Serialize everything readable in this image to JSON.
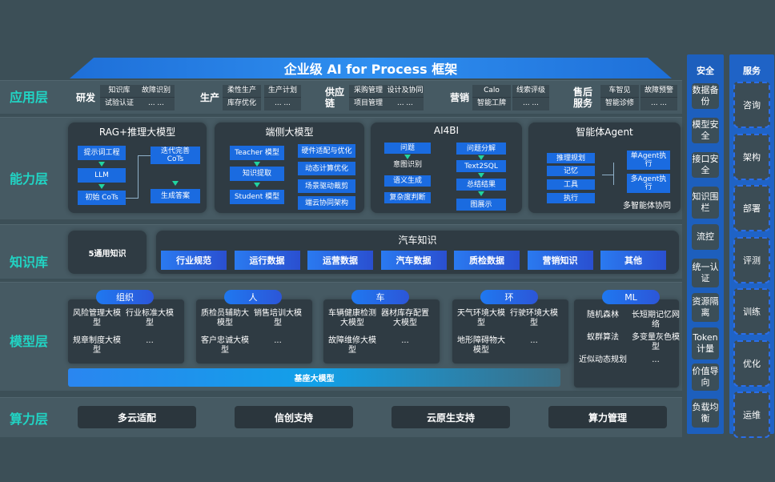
{
  "title": "企业级 AI for Process 框架",
  "layers": {
    "app": "应用层",
    "capability": "能力层",
    "knowledge": "知识库",
    "model": "模型层",
    "compute": "算力层"
  },
  "app_layer": [
    {
      "category": "研发",
      "items": [
        [
          "知识库",
          "试验认证"
        ],
        [
          "故障识别",
          "... ..."
        ]
      ]
    },
    {
      "category": "生产",
      "items": [
        [
          "柔性生产",
          "库存优化"
        ],
        [
          "生产计划",
          "... ..."
        ]
      ]
    },
    {
      "category": "供应链",
      "items": [
        [
          "采购管理",
          "项目管理"
        ],
        [
          "设计及协同",
          "... ..."
        ]
      ]
    },
    {
      "category": "营销",
      "items": [
        [
          "Calo",
          "智能工牌"
        ],
        [
          "线索评级",
          "... ..."
        ]
      ]
    },
    {
      "category": "售后服务",
      "items": [
        [
          "车智见",
          "智能诊修"
        ],
        [
          "故障预警",
          "... ..."
        ]
      ]
    }
  ],
  "capability": {
    "rag": {
      "title": "RAG+推理大模型",
      "steps": [
        "提示词工程",
        "LLM",
        "初始 CoTs"
      ],
      "refine": "迭代完善 CoTs",
      "answer": "生成答案"
    },
    "edge": {
      "title": "端侧大模型",
      "steps": [
        "Teacher 模型",
        "知识提取",
        "Student 模型"
      ],
      "features": [
        "硬件适配与优化",
        "动态计算优化",
        "场景驱动裁剪",
        "端云协同架构"
      ]
    },
    "ai4bi": {
      "title": "AI4BI",
      "left": [
        "问题",
        "意图识别",
        "语义生成",
        "复杂度判断"
      ],
      "right": [
        "问题分解",
        "Text2SQL",
        "总结结果",
        "图展示"
      ]
    },
    "agent": {
      "title": "智能体Agent",
      "modules": [
        "推理规划",
        "记忆",
        "工具",
        "执行"
      ],
      "exec": [
        "单Agent执行",
        "多Agent执行"
      ],
      "footer": "多智能体协同"
    }
  },
  "knowledge": {
    "general": "5通用知识",
    "auto_title": "汽车知识",
    "items": [
      "行业规范",
      "运行数据",
      "运营数据",
      "汽车数据",
      "质检数据",
      "营销知识",
      "其他"
    ]
  },
  "model_layer": {
    "groups": [
      {
        "name": "组织",
        "items": [
          "风险管理大模型",
          "行业标准大模型",
          "规章制度大模型",
          "..."
        ]
      },
      {
        "name": "人",
        "items": [
          "质检员辅助大模型",
          "销售培训大模型",
          "客户忠诚大模型",
          "..."
        ]
      },
      {
        "name": "车",
        "items": [
          "车辆健康检测大模型",
          "器材库存配置大模型",
          "故障维修大模型",
          "..."
        ]
      },
      {
        "name": "环",
        "items": [
          "天气环境大模型",
          "行驶环境大模型",
          "地形障碍物大模型",
          "..."
        ]
      },
      {
        "name": "ML",
        "items": [
          "随机森林",
          "长短期记忆网络",
          "蚁群算法",
          "多变量灰色模型",
          "近似动态规划",
          "..."
        ]
      }
    ],
    "base": "基座大模型"
  },
  "compute": [
    "多云适配",
    "信创支持",
    "云原生支持",
    "算力管理"
  ],
  "security": {
    "title": "安全",
    "items": [
      "数据备份",
      "模型安全",
      "接口安全",
      "知识围栏",
      "流控",
      "统一认证",
      "资源隔离",
      "Token计量",
      "价值导向",
      "负载均衡"
    ]
  },
  "services": {
    "title": "服务",
    "items": [
      "咨询",
      "架构",
      "部署",
      "评测",
      "训练",
      "优化",
      "运维"
    ]
  },
  "colors": {
    "accent_label": "#21d4c4",
    "primary_blue": "#1a6be0",
    "background": "#3c4f57",
    "card": "#2f3b43"
  }
}
